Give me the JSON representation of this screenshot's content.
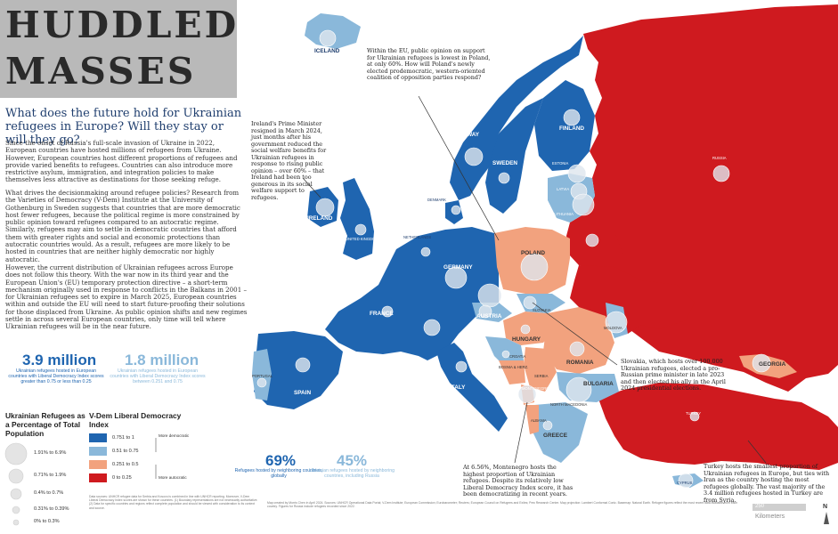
{
  "title": {
    "line1": "HUDDLED",
    "line2": "MASSES"
  },
  "subtitle": "What does the future hold for Ukrainian refugees in Europe? Will they stay or will they go?",
  "paragraphs": [
    "Since the onset of Russia's full-scale invasion of Ukraine in 2022, European countries have hosted millions of refugees from Ukraine. However, European countries host different proportions of refugees and provide varied benefits to refugees. Countries can also introduce more restrictive asylum, immigration, and integration policies to make themselves less attractive as destinations for those seeking refuge.",
    "What drives the decisionmaking around refugee policies? Research from the Varieties of Democracy (V-Dem) Institute at the University of Gothenburg in Sweden suggests that countries that are more democratic host fewer refugees, because the political regime is more constrained by public opinion toward refugees compared to an autocratic regime. Similarly, refugees may aim to settle in democratic countries that afford them with greater rights and social and economic protections than autocratic countries would. As a result, refugees are more likely to be hosted in countries that are neither highly democratic nor highly autocratic.",
    "However, the current distribution of Ukrainian refugees across Europe does not follow this theory. With the war now in its third year and the European Union's (EU) temporary protection directive – a short-term mechanism originally used in response to conflicts in the Balkans in 2001 – for Ukrainian refugees set to expire in March 2025, European countries within and outside the EU will need to start future-proofing their solutions for those displaced from Ukraine. As public opinion shifts and new regimes settle in across several European countries, only time will tell where Ukrainian refugees will be in the near future."
  ],
  "stats": [
    {
      "value": "3.9 million",
      "text": "Ukrainian refugees hosted in European countries with Liberal Democracy Index scores greater than 0.75 or less than 0.25",
      "color": "#1f65b0"
    },
    {
      "value": "1.8 million",
      "text": "Ukrainian refugees hosted in European countries with Liberal Democracy Index scores between 0.251 and 0.75",
      "color": "#8ab8da"
    },
    {
      "value": "69%",
      "text": "Refugees hosted by neighboring countries, globally",
      "color": "#1f65b0"
    },
    {
      "value": "45%",
      "text": "Ukrainian refugees hosted by neighboring countries, including Russia",
      "color": "#8ab8da"
    }
  ],
  "legend_size": {
    "title": "Ukrainian Refugees as a Percentage of Total Population",
    "items": [
      "1.91% to 6.9%",
      "0.71% to 1.9%",
      "0.4% to 0.7%",
      "0.31% to 0.39%",
      "0% to 0.3%"
    ]
  },
  "legend_color": {
    "title": "V-Dem Liberal Democracy Index",
    "items": [
      {
        "label": "0.751 to 1",
        "color": "#1f65b0"
      },
      {
        "label": "0.51 to 0.75",
        "color": "#8ab8da"
      },
      {
        "label": "0.251 to 0.5",
        "color": "#f2a27e"
      },
      {
        "label": "0 to 0.25",
        "color": "#cf1a1f"
      }
    ],
    "more": "More democratic",
    "less": "More autocratic"
  },
  "annotations": {
    "poland": "Within the EU, public opinion on support for Ukrainian refugees is lowest in Poland, at only 60%. How will Poland's newly elected prodemocratic, western-oriented coalition of opposition parties respond?",
    "ireland": "Ireland's Prime Minister resigned in March 2024, just months after his government reduced the social welfare benefits for Ukrainian refugees in response to rising public opinion – over 60% – that Ireland had been too generous in its social welfare support to refugees.",
    "slovakia": "Slovakia, which hosts over 100,000 Ukrainian refugees, elected a pro-Russian prime minister in late 2023 and then elected his ally in the April 2024 presidential elections.",
    "montenegro": "At 6.56%, Montenegro hosts the highest proportion of Ukrainian refugees. Despite its relatively low Liberal Democracy Index score, it has been democratizing in recent years.",
    "turkey": "Turkey hosts the smallest proportion of Ukrainian refugees in Europe, but ties with Iran as the country hosting the most refugees globally. The vast majority of the 3.4 million refugees hosted in Turkey are from Syria."
  },
  "countries": {
    "iceland": "ICELAND",
    "norway": "NORWAY",
    "sweden": "SWEDEN",
    "finland": "FINLAND",
    "estonia": "ESTONIA",
    "latvia": "LATVIA",
    "lithuania": "LITHUANIA",
    "denmark": "DENMARK",
    "ireland": "IRELAND",
    "uk": "UNITED KINGDOM",
    "netherlands": "NETHERLANDS",
    "germany": "GERMANY",
    "poland": "POLAND",
    "france": "FRANCE",
    "austria": "AUSTRIA",
    "slovakia": "SLOVAKIA",
    "hungary": "HUNGARY",
    "romania": "ROMANIA",
    "moldova": "MOLDOVA",
    "croatia": "CROATIA",
    "bosnia": "BOSNIA & HERZ.",
    "serbia": "SERBIA",
    "bulgaria": "BULGARIA",
    "montenegro": "MONTENEGRO",
    "north_macedonia": "NORTH MACEDONIA",
    "albania": "ALBANIA",
    "greece": "GREECE",
    "italy": "ITALY",
    "spain": "SPAIN",
    "portugal": "PORTUGAL",
    "georgia": "GEORGIA",
    "cyprus": "CYPRUS",
    "russia": "RUSSIA",
    "turkey": "TURKEY"
  },
  "scale": {
    "value": "250",
    "unit": "Kilometers"
  },
  "north": "N",
  "footnote_left": "Data sources: UNHCR refugee data for Serbia and Kosovo is combined in line with UNHCR reporting. Moreover, V-Dem Liberal Democracy Index scores are shown for these countries. (1) Boundary representations are not necessarily authoritative. (2) Data for specific countries and regions reflect complete population and should be viewed with consideration to its context and source.",
  "footnote_right": "Map created by Morris Chen in April 2024. Sources: UNHCR Operational Data Portal; V-Dem Institute; European Commission; Eurobarometer; Reuters; European Council on Refugees and Exiles; Pew Research Center. Map projection: Lambert Conformal Conic. Basemap: Natural Earth. Refugee figures reflect the most recent data available from each country. Figures for Russia include refugees recorded since 2022."
}
